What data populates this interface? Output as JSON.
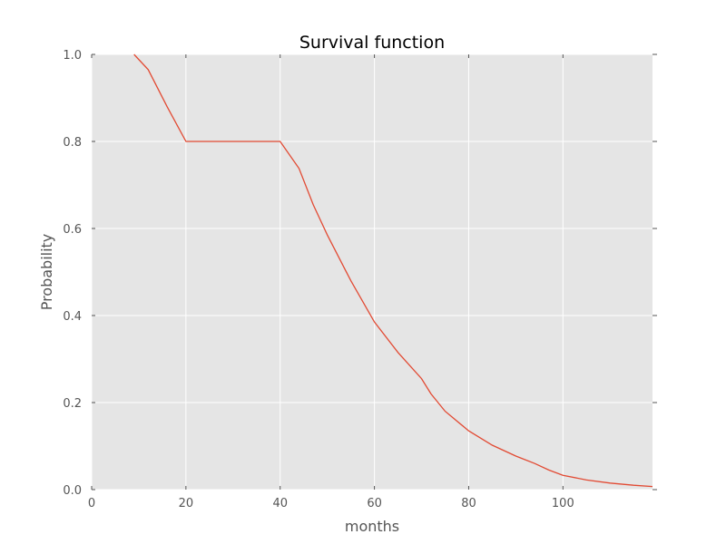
{
  "chart_data": {
    "type": "line",
    "title": "Survival function",
    "xlabel": "months",
    "ylabel": "Probability",
    "xlim": [
      0,
      119
    ],
    "ylim": [
      0.0,
      1.0
    ],
    "xticks": [
      0,
      20,
      40,
      60,
      80,
      100
    ],
    "xtick_labels": [
      "0",
      "20",
      "40",
      "60",
      "80",
      "100"
    ],
    "yticks": [
      0.0,
      0.2,
      0.4,
      0.6,
      0.8,
      1.0
    ],
    "ytick_labels": [
      "0.0",
      "0.2",
      "0.4",
      "0.6",
      "0.8",
      "1.0"
    ],
    "grid": true,
    "background_color": "#e5e5e5",
    "line_color": "#e24a33",
    "series": [
      {
        "x": [
          9,
          12,
          16,
          20,
          25,
          30,
          35,
          40,
          44,
          47,
          50,
          55,
          60,
          65,
          70,
          72,
          75,
          80,
          85,
          90,
          94,
          97,
          100,
          105,
          110,
          115,
          119
        ],
        "y": [
          1.0,
          0.965,
          0.88,
          0.8,
          0.8,
          0.8,
          0.8,
          0.8,
          0.738,
          0.655,
          0.585,
          0.48,
          0.385,
          0.315,
          0.255,
          0.22,
          0.18,
          0.135,
          0.102,
          0.077,
          0.06,
          0.045,
          0.033,
          0.022,
          0.015,
          0.01,
          0.007
        ]
      }
    ]
  }
}
